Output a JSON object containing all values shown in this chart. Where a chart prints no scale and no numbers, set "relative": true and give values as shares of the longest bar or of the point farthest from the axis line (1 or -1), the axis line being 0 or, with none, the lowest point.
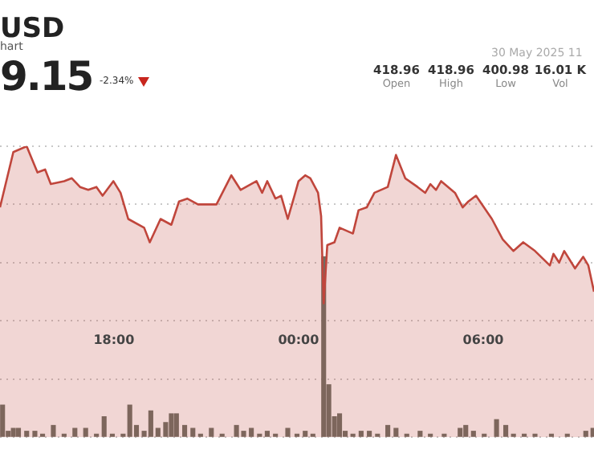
{
  "chart_data": {
    "type": "area",
    "title": "USD",
    "subtitle": "hart",
    "relative": true,
    "grid": "y",
    "legend": false,
    "marker": "none",
    "annotations": [
      "9.15",
      "-2.34%",
      "30 May 2025 11",
      "418.96",
      "Open",
      "418.96",
      "High",
      "400.98",
      "Low",
      "16.01 K",
      "Vol"
    ],
    "xlim": [
      "2025-05-29T14:18",
      "2025-05-30T09:36"
    ],
    "xticks": [
      {
        "value": "2025-05-29T18:00",
        "label": "18:00"
      },
      {
        "value": "2025-05-30T00:00",
        "label": "00:00"
      },
      {
        "value": "2025-05-30T06:00",
        "label": "06:00"
      }
    ],
    "series": [
      {
        "color": "#c0463c",
        "x": [
          "2025-05-29T14:18",
          "2025-05-29T14:44",
          "2025-05-29T15:10",
          "2025-05-29T15:31",
          "2025-05-29T15:46",
          "2025-05-29T15:57",
          "2025-05-29T16:23",
          "2025-05-29T16:38",
          "2025-05-29T16:54",
          "2025-05-29T17:10",
          "2025-05-29T17:26",
          "2025-05-29T17:38",
          "2025-05-29T17:59",
          "2025-05-29T18:13",
          "2025-05-29T18:28",
          "2025-05-29T18:59",
          "2025-05-29T19:10",
          "2025-05-29T19:31",
          "2025-05-29T19:52",
          "2025-05-29T20:07",
          "2025-05-29T20:23",
          "2025-05-29T20:44",
          "2025-05-29T21:20",
          "2025-05-29T21:49",
          "2025-05-29T22:07",
          "2025-05-29T22:38",
          "2025-05-29T22:49",
          "2025-05-29T22:59",
          "2025-05-29T23:15",
          "2025-05-29T23:26",
          "2025-05-29T23:39",
          "2025-05-29T23:52",
          "2025-05-30T00:00",
          "2025-05-30T00:13",
          "2025-05-30T00:23",
          "2025-05-30T00:38",
          "2025-05-30T00:44",
          "2025-05-30T00:49",
          "2025-05-30T00:56",
          "2025-05-30T01:10",
          "2025-05-30T01:20",
          "2025-05-30T01:46",
          "2025-05-30T01:57",
          "2025-05-30T02:13",
          "2025-05-30T02:28",
          "2025-05-30T02:54",
          "2025-05-30T03:10",
          "2025-05-30T03:28",
          "2025-05-30T03:52",
          "2025-05-30T04:07",
          "2025-05-30T04:17",
          "2025-05-30T04:28",
          "2025-05-30T04:38",
          "2025-05-30T05:05",
          "2025-05-30T05:20",
          "2025-05-30T05:31",
          "2025-05-30T05:46",
          "2025-05-30T06:17",
          "2025-05-30T06:38",
          "2025-05-30T06:59",
          "2025-05-30T07:18",
          "2025-05-30T07:41",
          "2025-05-30T08:10",
          "2025-05-30T08:17",
          "2025-05-30T08:28",
          "2025-05-30T08:38",
          "2025-05-30T08:59",
          "2025-05-30T09:15",
          "2025-05-30T09:25",
          "2025-05-30T09:36"
        ],
        "values": [
          0.79,
          0.98,
          1.0,
          0.91,
          0.92,
          0.87,
          0.88,
          0.89,
          0.86,
          0.85,
          0.86,
          0.83,
          0.88,
          0.84,
          0.75,
          0.72,
          0.67,
          0.75,
          0.73,
          0.81,
          0.82,
          0.8,
          0.8,
          0.9,
          0.85,
          0.88,
          0.84,
          0.88,
          0.82,
          0.83,
          0.75,
          0.83,
          0.88,
          0.9,
          0.89,
          0.84,
          0.76,
          0.46,
          0.66,
          0.67,
          0.72,
          0.7,
          0.78,
          0.79,
          0.84,
          0.86,
          0.97,
          0.89,
          0.86,
          0.84,
          0.87,
          0.85,
          0.88,
          0.84,
          0.79,
          0.81,
          0.83,
          0.75,
          0.68,
          0.64,
          0.67,
          0.64,
          0.59,
          0.63,
          0.6,
          0.64,
          0.58,
          0.62,
          0.59,
          0.5
        ]
      },
      {
        "type": "bar",
        "color": "#6b7066",
        "x": [
          "2025-05-29T14:23",
          "2025-05-29T14:34",
          "2025-05-29T14:44",
          "2025-05-29T14:54",
          "2025-05-29T15:10",
          "2025-05-29T15:26",
          "2025-05-29T15:41",
          "2025-05-29T16:02",
          "2025-05-29T16:23",
          "2025-05-29T16:44",
          "2025-05-29T17:05",
          "2025-05-29T17:26",
          "2025-05-29T17:41",
          "2025-05-29T17:57",
          "2025-05-29T18:18",
          "2025-05-29T18:31",
          "2025-05-29T18:44",
          "2025-05-29T18:59",
          "2025-05-29T19:12",
          "2025-05-29T19:26",
          "2025-05-29T19:41",
          "2025-05-29T19:52",
          "2025-05-29T20:02",
          "2025-05-29T20:18",
          "2025-05-29T20:34",
          "2025-05-29T20:49",
          "2025-05-29T21:10",
          "2025-05-29T21:31",
          "2025-05-29T21:59",
          "2025-05-29T22:13",
          "2025-05-29T22:28",
          "2025-05-29T22:44",
          "2025-05-29T22:59",
          "2025-05-29T23:15",
          "2025-05-29T23:39",
          "2025-05-29T23:57",
          "2025-05-30T00:13",
          "2025-05-30T00:28",
          "2025-05-30T00:49",
          "2025-05-30T00:59",
          "2025-05-30T01:10",
          "2025-05-30T01:20",
          "2025-05-30T01:31",
          "2025-05-30T01:46",
          "2025-05-30T02:02",
          "2025-05-30T02:18",
          "2025-05-30T02:34",
          "2025-05-30T02:54",
          "2025-05-30T03:10",
          "2025-05-30T03:31",
          "2025-05-30T03:57",
          "2025-05-30T04:17",
          "2025-05-30T04:44",
          "2025-05-30T05:15",
          "2025-05-30T05:26",
          "2025-05-30T05:41",
          "2025-05-30T06:02",
          "2025-05-30T06:26",
          "2025-05-30T06:44",
          "2025-05-30T06:59",
          "2025-05-30T07:20",
          "2025-05-30T07:41",
          "2025-05-30T08:13",
          "2025-05-30T08:44",
          "2025-05-30T09:20",
          "2025-05-30T09:34"
        ],
        "values": [
          0.11,
          0.02,
          0.03,
          0.03,
          0.02,
          0.02,
          0.01,
          0.04,
          0.01,
          0.03,
          0.03,
          0.01,
          0.07,
          0.01,
          0.01,
          0.11,
          0.04,
          0.02,
          0.09,
          0.03,
          0.05,
          0.08,
          0.08,
          0.04,
          0.03,
          0.01,
          0.03,
          0.01,
          0.04,
          0.02,
          0.03,
          0.01,
          0.02,
          0.01,
          0.03,
          0.01,
          0.02,
          0.01,
          0.62,
          0.18,
          0.07,
          0.08,
          0.02,
          0.01,
          0.02,
          0.02,
          0.01,
          0.04,
          0.03,
          0.01,
          0.02,
          0.01,
          0.01,
          0.03,
          0.04,
          0.02,
          0.01,
          0.06,
          0.04,
          0.01,
          0.01,
          0.01,
          0.01,
          0.01,
          0.02,
          0.03
        ]
      }
    ]
  }
}
